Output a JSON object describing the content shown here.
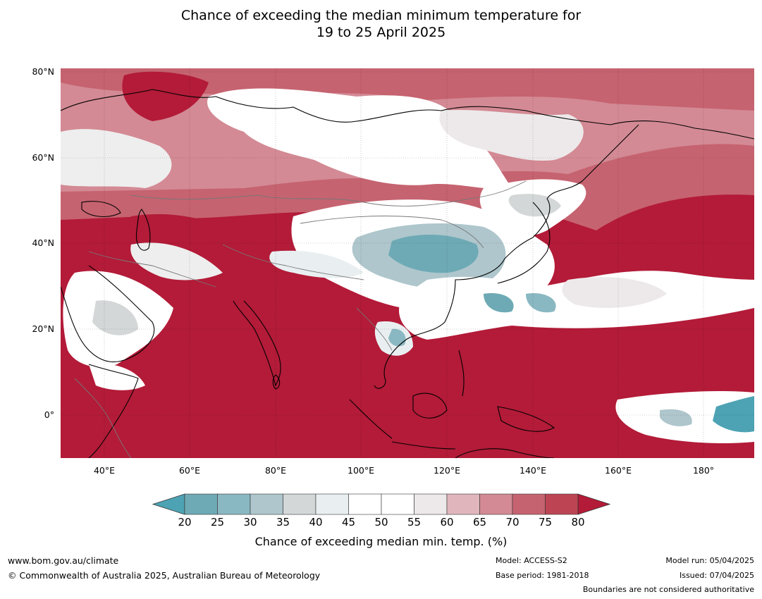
{
  "title_line1": "Chance of exceeding the median minimum temperature for",
  "title_line2": "19 to 25 April 2025",
  "lat_labels": [
    "80°N",
    "60°N",
    "40°N",
    "20°N",
    "0°"
  ],
  "lon_labels": [
    "40°E",
    "60°E",
    "80°E",
    "100°E",
    "120°E",
    "140°E",
    "160°E",
    "180°"
  ],
  "colorbar": {
    "label": "Chance of exceeding median min. temp. (%)",
    "ticks": [
      "20",
      "25",
      "30",
      "35",
      "40",
      "45",
      "50",
      "55",
      "60",
      "65",
      "70",
      "75",
      "80"
    ],
    "colors": [
      "#6eaab5",
      "#8ab8c2",
      "#aec6cc",
      "#d3d7d8",
      "#e9eff1",
      "#ffffff",
      "#ffffff",
      "#ede9ea",
      "#e0b6bc",
      "#d38a94",
      "#c66370",
      "#bd4553"
    ],
    "low_color": "#4da3b3",
    "high_color": "#b31b38"
  },
  "footer": {
    "url": "www.bom.gov.au/climate",
    "copyright": "© Commonwealth of Australia 2025, Australian Bureau of Meteorology",
    "model": "Model: ACCESS-S2",
    "base_period": "Base period: 1981-2018",
    "model_run": "Model run: 05/04/2025",
    "issued": "Issued: 07/04/2025",
    "disclaimer": "Boundaries are not considered authoritative"
  }
}
